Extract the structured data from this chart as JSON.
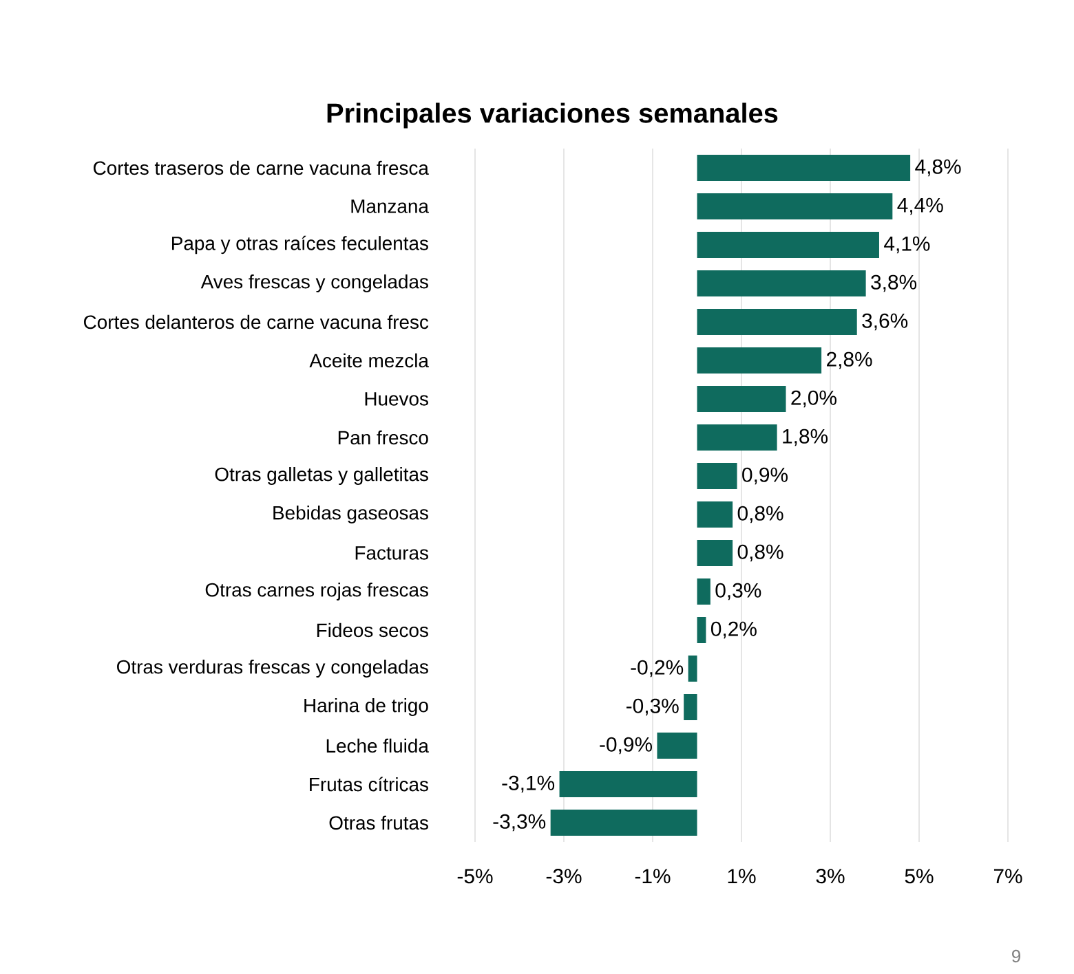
{
  "chart_data": {
    "type": "bar",
    "orientation": "horizontal",
    "title": "Principales variaciones semanales",
    "categories": [
      "Cortes traseros de carne vacuna fresca",
      "Manzana",
      "Papa y otras raíces feculentas",
      "Aves frescas y congeladas",
      "Cortes delanteros de carne vacuna fresc",
      "Aceite mezcla",
      "Huevos",
      "Pan fresco",
      "Otras galletas y galletitas",
      "Bebidas gaseosas",
      "Facturas",
      "Otras carnes rojas frescas",
      "Fideos secos",
      "Otras verduras frescas y congeladas",
      "Harina de trigo",
      "Leche fluida",
      "Frutas cítricas",
      "Otras frutas"
    ],
    "values": [
      4.8,
      4.4,
      4.1,
      3.8,
      3.6,
      2.8,
      2.0,
      1.8,
      0.9,
      0.8,
      0.8,
      0.3,
      0.2,
      -0.2,
      -0.3,
      -0.9,
      -3.1,
      -3.3
    ],
    "value_labels": [
      "4,8%",
      "4,4%",
      "4,1%",
      "3,8%",
      "3,6%",
      "2,8%",
      "2,0%",
      "1,8%",
      "0,9%",
      "0,8%",
      "0,8%",
      "0,3%",
      "0,2%",
      "-0,2%",
      "-0,3%",
      "-0,9%",
      "-3,1%",
      "-3,3%"
    ],
    "color": "#0f6b5e",
    "xlim": [
      -5,
      7
    ],
    "xticks": [
      {
        "value": -5,
        "label": "-5%"
      },
      {
        "value": -3,
        "label": "-3%"
      },
      {
        "value": -1,
        "label": "-1%"
      },
      {
        "value": 1,
        "label": "1%"
      },
      {
        "value": 3,
        "label": "3%"
      },
      {
        "value": 5,
        "label": "5%"
      },
      {
        "value": 7,
        "label": "7%"
      }
    ],
    "grid": "x",
    "annotations": [
      "9"
    ]
  }
}
